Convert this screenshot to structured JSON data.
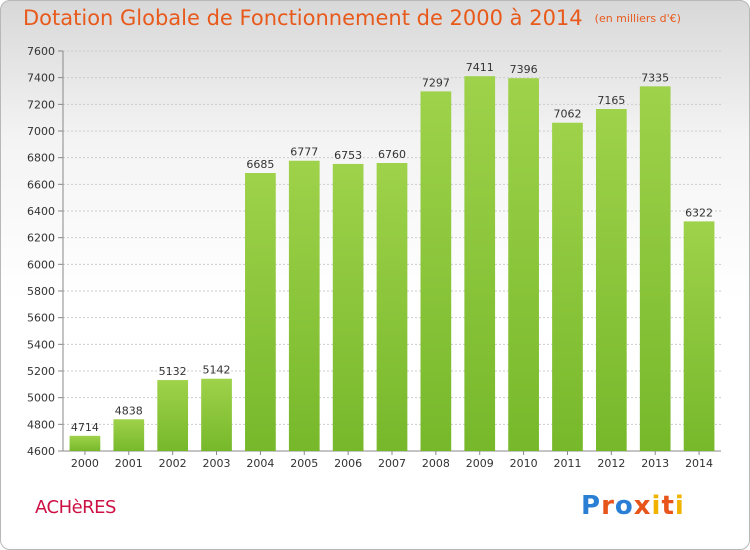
{
  "title": "Dotation Globale de Fonctionnement de 2000 à 2014",
  "subtitle": "(en milliers d'€)",
  "city": "ACHèRES",
  "logo": {
    "text": "Proxiti",
    "letters": [
      "P",
      "r",
      "o",
      "x",
      "i",
      "t",
      "i"
    ],
    "colors": [
      "#2a7fd4",
      "#e8551b",
      "#2a7fd4",
      "#e8551b",
      "#f0b400",
      "#e8551b",
      "#f0b400"
    ]
  },
  "colors": {
    "bar": "#77b82b",
    "bar_light": "#9ed24a",
    "title": "#e85a1c",
    "city": "#cc1144",
    "grid": "#cccccc"
  },
  "chart_data": {
    "type": "bar",
    "categories": [
      "2000",
      "2001",
      "2002",
      "2003",
      "2004",
      "2005",
      "2006",
      "2007",
      "2008",
      "2009",
      "2010",
      "2011",
      "2012",
      "2013",
      "2014"
    ],
    "values": [
      4714,
      4838,
      5132,
      5142,
      6685,
      6777,
      6753,
      6760,
      7297,
      7411,
      7396,
      7062,
      7165,
      7335,
      6322
    ],
    "ylim": [
      4600,
      7600
    ],
    "yticks": [
      4600,
      4800,
      5000,
      5200,
      5400,
      5600,
      5800,
      6000,
      6200,
      6400,
      6600,
      6800,
      7000,
      7200,
      7400,
      7600
    ],
    "grid": true,
    "data_labels": true
  }
}
